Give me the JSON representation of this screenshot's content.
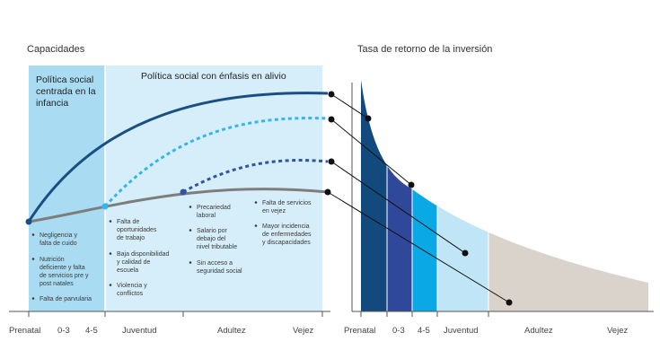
{
  "left_panel": {
    "title": "Capacidades",
    "region_early_label": [
      "Política social",
      "centrada en la",
      "infancia"
    ],
    "region_relief_label": "Política social con énfasis en alivio",
    "x_axis_labels": [
      "Prenatal",
      "0-3",
      "4-5",
      "Juventud",
      "Adultez",
      "Vejez"
    ],
    "risk_groups": [
      {
        "stage": "Prenatal / 0-3",
        "items": [
          [
            "Negligencia y",
            "falta de cuido"
          ],
          [
            "Nutrición",
            "deficiente y falta",
            "de servicios pre y",
            "post natales"
          ],
          [
            "Falta de parvularia"
          ]
        ]
      },
      {
        "stage": "Juventud",
        "items": [
          [
            "Falta de",
            "oportunidades",
            "de trabajo"
          ],
          [
            "Baja disponibilidad",
            "y calidad de",
            "escuela"
          ],
          [
            "Violencia y",
            "conflictos"
          ]
        ]
      },
      {
        "stage": "Adultez",
        "items": [
          [
            "Precariedad",
            "laboral"
          ],
          [
            "Salario por",
            "debajo del",
            "nivel tributable"
          ],
          [
            "Sin acceso a",
            "seguridad social"
          ]
        ]
      },
      {
        "stage": "Vejez",
        "items": [
          [
            "Falta de servicios",
            "en vejez"
          ],
          [
            "Mayor incidencia",
            "de enfermedades",
            "y discapacidades"
          ]
        ]
      }
    ]
  },
  "right_panel": {
    "title": "Tasa de retorno de la inversión",
    "x_axis_labels": [
      "Prenatal",
      "0-3",
      "4-5",
      "Juventud",
      "Adultez",
      "Vejez"
    ]
  },
  "colors": {
    "early_region": "#a9dcf3",
    "relief_region": "#d6eefa",
    "curve_high": "#1b4f82",
    "curve_mid_dotted": "#35b6ea",
    "curve_low_dotted": "#2f54a0",
    "curve_base": "#7d7d7d",
    "bar_prenatal": "#124a7d",
    "bar_03": "#30489a",
    "bar_45": "#0aa9e6",
    "bar_youth": "#bfe5f7",
    "bar_adult": "#d9d3cc",
    "connector": "#111111"
  }
}
